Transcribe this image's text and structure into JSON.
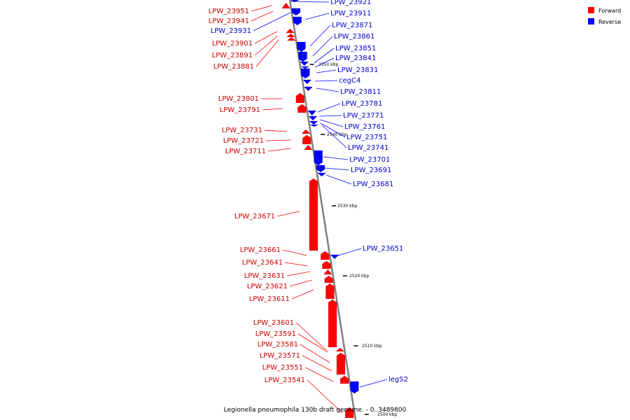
{
  "caption": "Legionella pneumophila 130b draft genome. - 0..3489800",
  "colors": {
    "forward": "#ff0000",
    "reverse": "#0000ff",
    "backbone": "#808080",
    "forward_text": "#cc0000",
    "reverse_text": "#0000cc"
  },
  "legend": [
    {
      "label": "Forward",
      "color": "#ff0000"
    },
    {
      "label": "Reverse",
      "color": "#0000ff"
    }
  ],
  "ticks": [
    "2550 kbp",
    "2540 kbp",
    "2530 kbp",
    "2520 kbp",
    "2510 kbp",
    "2500 kbp"
  ],
  "forward_genes": [
    "LPW_23951",
    "LPW_23941",
    "LPW_23901",
    "LPW_23891",
    "LPW_23881",
    "LPW_23801",
    "LPW_23791",
    "LPW_23731",
    "LPW_23721",
    "LPW_23711",
    "LPW_23671",
    "LPW_23661",
    "LPW_23641",
    "LPW_23631",
    "LPW_23621",
    "LPW_23611",
    "LPW_23601",
    "LPW_23591",
    "LPW_23581",
    "LPW_23571",
    "LPW_23551",
    "LPW_23541"
  ],
  "reverse_genes": [
    "LPW_23931",
    "LPW_23921",
    "LPW_23911",
    "LPW_23871",
    "LPW_23861",
    "LPW_23851",
    "LPW_23841",
    "LPW_23831",
    "cegC4",
    "LPW_23811",
    "LPW_23781",
    "LPW_23771",
    "LPW_23761",
    "LPW_23751",
    "LPW_23741",
    "LPW_23701",
    "LPW_23691",
    "LPW_23681",
    "LPW_23651",
    "legS2"
  ]
}
